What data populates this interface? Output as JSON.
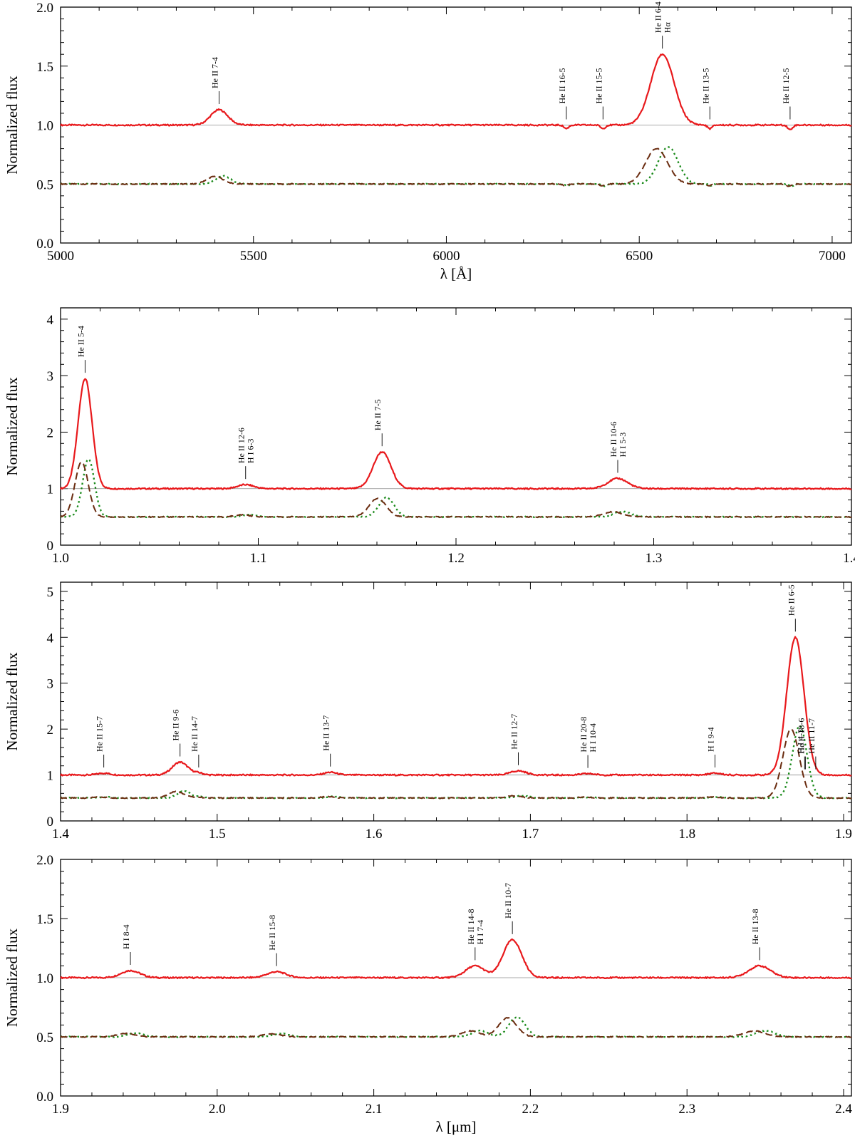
{
  "colors": {
    "series_solid": "#e8191c",
    "series_dashed": "#6a2c10",
    "series_dotted": "#1a8a1a",
    "continuum": "#8c8c8c"
  },
  "chart_data": [
    {
      "type": "line",
      "ylabel": "Normalized flux",
      "xlabel": "λ [Å]",
      "xlim": [
        5000,
        7050
      ],
      "ylim": [
        0,
        2
      ],
      "xticks": [
        5000,
        5500,
        6000,
        6500,
        7000
      ],
      "xtick_labels": [
        "5000",
        "5500",
        "6000",
        "6500",
        "7000"
      ],
      "yticks": [
        0,
        0.5,
        1,
        1.5,
        2
      ],
      "ytick_labels": [
        "0.0",
        "0.5",
        "1.0",
        "1.5",
        "2.0"
      ],
      "baseline": 1.0,
      "offset": 0.5,
      "lines": [
        {
          "x": 5411,
          "amp": 0.13,
          "w": 22,
          "labels": [
            "He II 7-4"
          ]
        },
        {
          "x": 6311,
          "amp": -0.03,
          "w": 6,
          "labels": [
            "He II 16-5"
          ]
        },
        {
          "x": 6406,
          "amp": -0.03,
          "w": 6,
          "labels": [
            "He II 15-5"
          ]
        },
        {
          "x": 6560,
          "amp": 0.6,
          "w": 30,
          "labels": [
            "He II 6-4",
            "Hα"
          ]
        },
        {
          "x": 6683,
          "amp": -0.03,
          "w": 6,
          "labels": [
            "He II 13-5"
          ]
        },
        {
          "x": 6891,
          "amp": -0.04,
          "w": 6,
          "labels": [
            "He II 12-5"
          ]
        }
      ]
    },
    {
      "type": "line",
      "ylabel": "Normalized flux",
      "xlabel": "",
      "xlim": [
        1.0,
        1.4
      ],
      "ylim": [
        0,
        4.2
      ],
      "xticks": [
        1.0,
        1.1,
        1.2,
        1.3,
        1.4
      ],
      "xtick_labels": [
        "1.0",
        "1.1",
        "1.2",
        "1.3",
        "1.4"
      ],
      "yticks": [
        0,
        1,
        2,
        3,
        4
      ],
      "ytick_labels": [
        "0",
        "1",
        "2",
        "3",
        "4"
      ],
      "baseline": 1.0,
      "offset": 0.5,
      "lines": [
        {
          "x": 1.0124,
          "amp": 1.95,
          "w": 0.0035,
          "labels": [
            "He II 5-4"
          ]
        },
        {
          "x": 1.0936,
          "amp": 0.07,
          "w": 0.004,
          "labels": [
            "He II 12-6",
            "H I 6-3"
          ]
        },
        {
          "x": 1.1626,
          "amp": 0.65,
          "w": 0.0045,
          "labels": [
            "He II 7-5"
          ]
        },
        {
          "x": 1.2818,
          "amp": 0.18,
          "w": 0.005,
          "labels": [
            "He II 10-6",
            "H I 5-3"
          ]
        }
      ]
    },
    {
      "type": "line",
      "ylabel": "Normalized flux",
      "xlabel": "",
      "xlim": [
        1.4,
        1.905
      ],
      "ylim": [
        0,
        5.2
      ],
      "xticks": [
        1.4,
        1.5,
        1.6,
        1.7,
        1.8,
        1.9
      ],
      "xtick_labels": [
        "1.4",
        "1.5",
        "1.6",
        "1.7",
        "1.8",
        "1.9"
      ],
      "yticks": [
        0,
        1,
        2,
        3,
        4,
        5
      ],
      "ytick_labels": [
        "0",
        "1",
        "2",
        "3",
        "4",
        "5"
      ],
      "baseline": 1.0,
      "offset": 0.5,
      "lines": [
        {
          "x": 1.4276,
          "amp": 0.04,
          "w": 0.004,
          "labels": [
            "He II 15-7"
          ]
        },
        {
          "x": 1.4763,
          "amp": 0.28,
          "w": 0.005,
          "labels": [
            "He II 9-6"
          ]
        },
        {
          "x": 1.4882,
          "amp": 0.04,
          "w": 0.003,
          "labels": [
            "He II 14-7"
          ]
        },
        {
          "x": 1.5723,
          "amp": 0.06,
          "w": 0.004,
          "labels": [
            "He II 13-7"
          ]
        },
        {
          "x": 1.6923,
          "amp": 0.09,
          "w": 0.005,
          "labels": [
            "He II 12-7"
          ]
        },
        {
          "x": 1.7367,
          "amp": 0.03,
          "w": 0.004,
          "labels": [
            "He II 20-8",
            "H I 10-4"
          ]
        },
        {
          "x": 1.8179,
          "amp": 0.04,
          "w": 0.004,
          "labels": [
            "H I 9-4"
          ]
        },
        {
          "x": 1.8692,
          "amp": 3.0,
          "w": 0.0055,
          "labels": [
            "He II 6-5"
          ]
        },
        {
          "x": 1.8756,
          "amp": 0.0,
          "w": 0.003,
          "labels": [
            "He II 18-6"
          ]
        },
        {
          "x": 1.8751,
          "amp": 0.0,
          "w": 0.003,
          "labels": [
            "H I 4-3"
          ]
        },
        {
          "x": 1.8822,
          "amp": 0.0,
          "w": 0.003,
          "labels": [
            "He II 11-7"
          ]
        }
      ]
    },
    {
      "type": "line",
      "ylabel": "Normalized flux",
      "xlabel": "λ [μm]",
      "xlim": [
        1.9,
        2.405
      ],
      "ylim": [
        0,
        2
      ],
      "xticks": [
        1.9,
        2.0,
        2.1,
        2.2,
        2.3,
        2.4
      ],
      "xtick_labels": [
        "1.9",
        "2.0",
        "2.1",
        "2.2",
        "2.3",
        "2.4"
      ],
      "yticks": [
        0,
        0.5,
        1,
        1.5,
        2
      ],
      "ytick_labels": [
        "0.0",
        "0.5",
        "1.0",
        "1.5",
        "2.0"
      ],
      "baseline": 1.0,
      "offset": 0.5,
      "lines": [
        {
          "x": 1.9446,
          "amp": 0.06,
          "w": 0.006,
          "labels": [
            "H I 8-4"
          ]
        },
        {
          "x": 2.0379,
          "amp": 0.05,
          "w": 0.006,
          "labels": [
            "He II 15-8"
          ]
        },
        {
          "x": 2.1647,
          "amp": 0.1,
          "w": 0.006,
          "labels": [
            "He II 14-8",
            "H I 7-4"
          ]
        },
        {
          "x": 2.1885,
          "amp": 0.32,
          "w": 0.006,
          "labels": [
            "He II 10-7"
          ]
        },
        {
          "x": 2.3464,
          "amp": 0.1,
          "w": 0.007,
          "labels": [
            "He II 13-8"
          ]
        }
      ]
    }
  ]
}
